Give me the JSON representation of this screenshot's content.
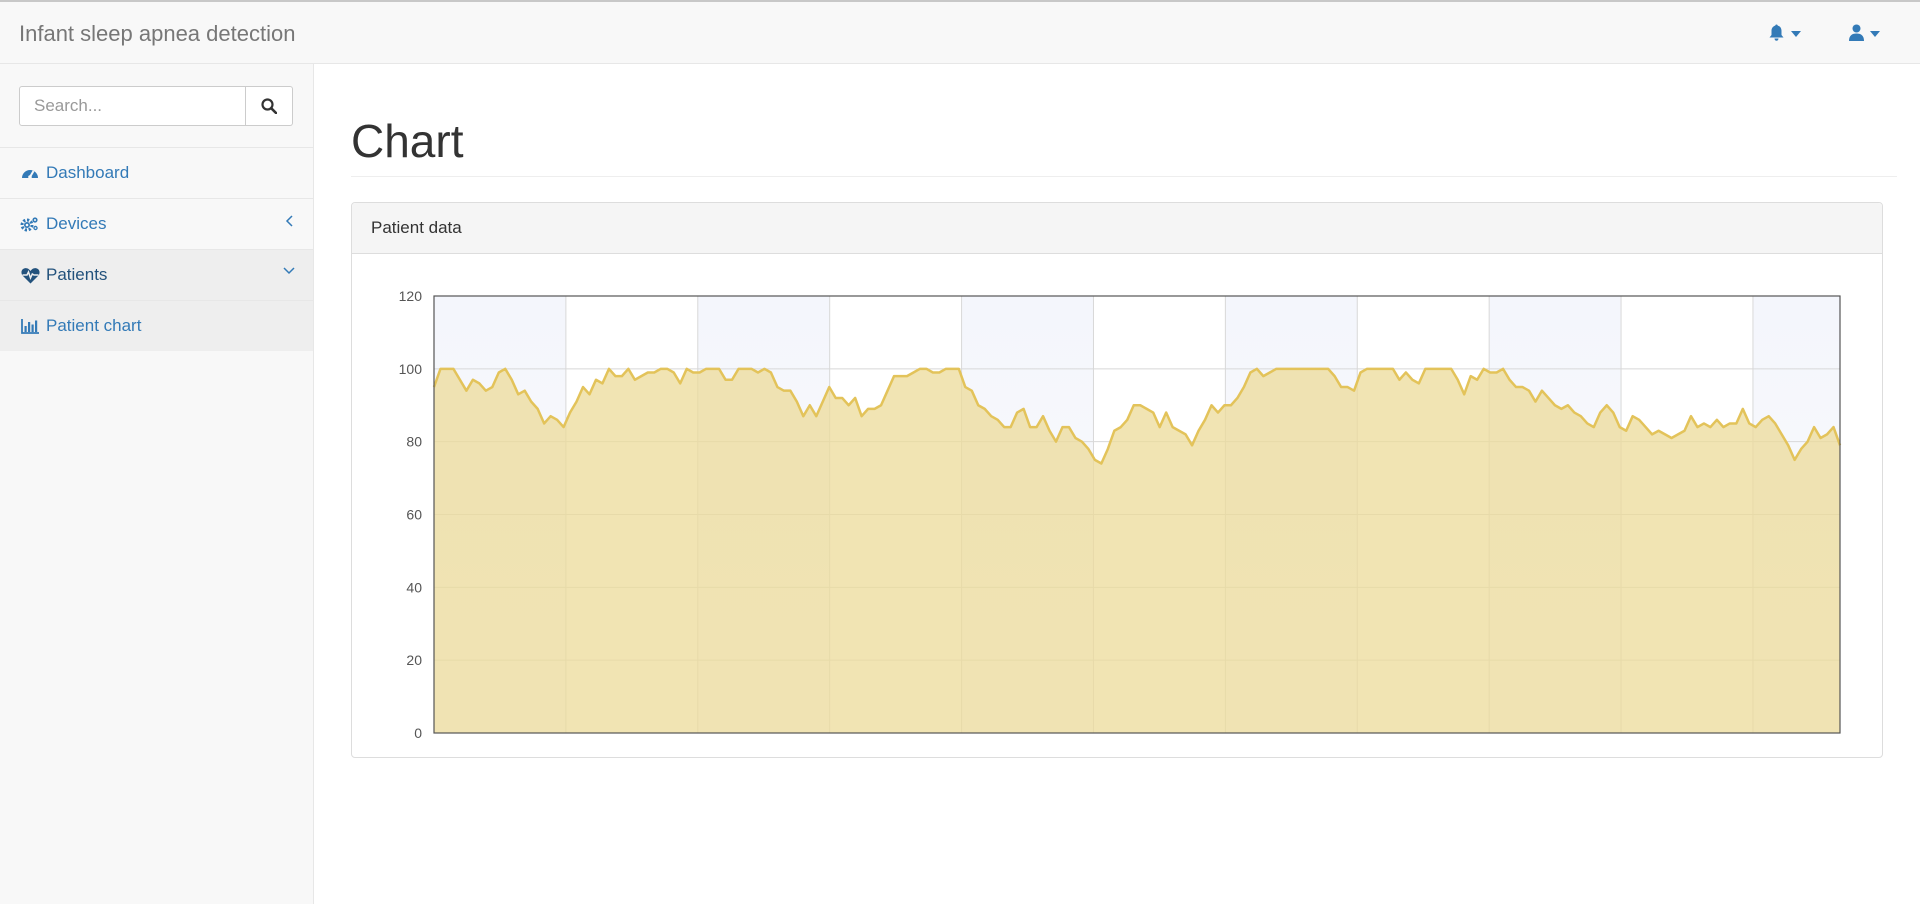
{
  "app": {
    "title": "Infant sleep apnea detection"
  },
  "topbar": {
    "icons": [
      "bell-icon",
      "user-icon"
    ]
  },
  "search": {
    "placeholder": "Search...",
    "value": ""
  },
  "sidebar": {
    "items": [
      {
        "label": "Dashboard",
        "icon": "dashboard-icon"
      },
      {
        "label": "Devices",
        "icon": "cogs-icon",
        "arrow": "chevron-left-icon"
      },
      {
        "label": "Patients",
        "icon": "heartbeat-icon",
        "arrow": "chevron-down-icon"
      },
      {
        "label": "Patient chart",
        "icon": "bar-chart-icon"
      }
    ]
  },
  "page": {
    "title": "Chart"
  },
  "panel": {
    "heading": "Patient data"
  },
  "colors": {
    "link": "#337ab7",
    "series_line": "#e3c35a",
    "series_fill": "#ecdb9a"
  },
  "chart_data": {
    "type": "area",
    "title": "",
    "xlabel": "",
    "ylabel": "",
    "ylim": [
      0,
      120
    ],
    "yticks": [
      0,
      20,
      40,
      60,
      80,
      100,
      120
    ],
    "x_tick_labels": [],
    "grid": true,
    "series": [
      {
        "values": [
          95,
          100,
          100,
          100,
          97,
          94,
          97,
          96,
          94,
          95,
          99,
          100,
          97,
          93,
          94,
          91,
          89,
          85,
          87,
          86,
          84,
          88,
          91,
          95,
          93,
          97,
          96,
          100,
          98,
          98,
          100,
          97,
          98,
          99,
          99,
          100,
          100,
          99,
          96,
          100,
          99,
          99,
          100,
          100,
          100,
          97,
          97,
          100,
          100,
          100,
          99,
          100,
          99,
          95,
          94,
          94,
          91,
          87,
          90,
          87,
          91,
          95,
          92,
          92,
          90,
          92,
          87,
          89,
          89,
          90,
          94,
          98,
          98,
          98,
          99,
          100,
          100,
          99,
          99,
          100,
          100,
          100,
          95,
          94,
          90,
          89,
          87,
          86,
          84,
          84,
          88,
          89,
          84,
          84,
          87,
          83,
          80,
          84,
          84,
          81,
          80,
          78,
          75,
          74,
          78,
          83,
          84,
          86,
          90,
          90,
          89,
          88,
          84,
          88,
          84,
          83,
          82,
          79,
          83,
          86,
          90,
          88,
          90,
          90,
          92,
          95,
          99,
          100,
          98,
          99,
          100,
          100,
          100,
          100,
          100,
          100,
          100,
          100,
          100,
          98,
          95,
          95,
          94,
          99,
          100,
          100,
          100,
          100,
          100,
          97,
          99,
          97,
          96,
          100,
          100,
          100,
          100,
          100,
          97,
          93,
          98,
          97,
          100,
          99,
          99,
          100,
          97,
          95,
          95,
          94,
          91,
          94,
          92,
          90,
          89,
          90,
          88,
          87,
          85,
          84,
          88,
          90,
          88,
          84,
          83,
          87,
          86,
          84,
          82,
          83,
          82,
          81,
          82,
          83,
          87,
          84,
          85,
          84,
          86,
          84,
          85,
          85,
          89,
          85,
          84,
          86,
          87,
          85,
          82,
          79,
          75,
          78,
          80,
          84,
          81,
          82,
          84,
          79
        ]
      }
    ]
  }
}
